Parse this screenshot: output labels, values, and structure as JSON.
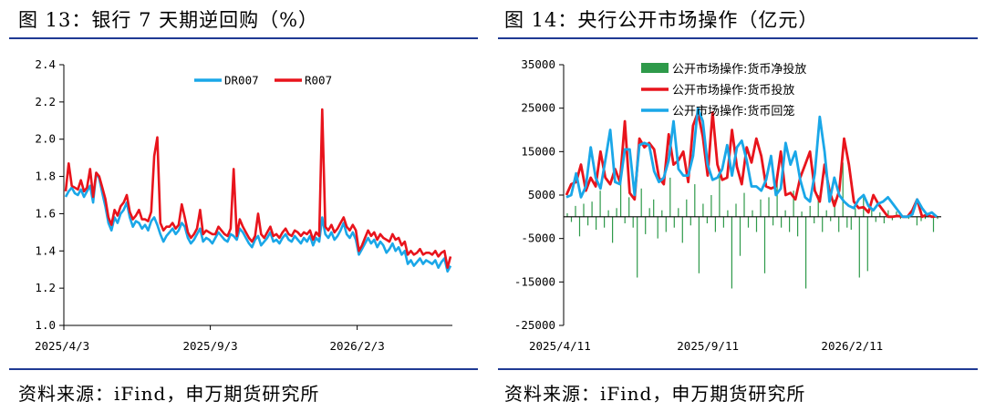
{
  "left": {
    "title": "图 13：银行 7 天期逆回购（%）",
    "source": "资料来源：iFind，申万期货研究所"
  },
  "right": {
    "title": "图 14：央行公开市场操作（亿元）",
    "source": "资料来源：iFind，申万期货研究所"
  },
  "colors": {
    "blue": "#1aa7e8",
    "red": "#e8141c",
    "green": "#2e9a4a",
    "rule": "#1f3a93"
  },
  "chart_data": [
    {
      "type": "line",
      "title": "图 13：银行 7 天期逆回购（%）",
      "xlabel": "",
      "ylabel": "",
      "ylim": [
        1.0,
        2.4
      ],
      "yticks": [
        "1.0",
        "1.2",
        "1.4",
        "1.6",
        "1.8",
        "2.0",
        "2.2",
        "2.4"
      ],
      "xticks": [
        "2025/4/3",
        "2025/9/3",
        "2026/2/3"
      ],
      "legend_position": "top-center",
      "series": [
        {
          "name": "DR007",
          "color": "#1aa7e8",
          "values": [
            1.69,
            1.72,
            1.74,
            1.71,
            1.7,
            1.73,
            1.69,
            1.72,
            1.75,
            1.66,
            1.82,
            1.79,
            1.71,
            1.64,
            1.55,
            1.51,
            1.58,
            1.55,
            1.6,
            1.62,
            1.66,
            1.58,
            1.53,
            1.56,
            1.55,
            1.52,
            1.54,
            1.51,
            1.56,
            1.58,
            1.54,
            1.49,
            1.45,
            1.48,
            1.5,
            1.52,
            1.49,
            1.51,
            1.55,
            1.53,
            1.47,
            1.44,
            1.46,
            1.49,
            1.52,
            1.45,
            1.47,
            1.46,
            1.44,
            1.47,
            1.5,
            1.48,
            1.46,
            1.45,
            1.49,
            1.48,
            1.46,
            1.52,
            1.5,
            1.47,
            1.44,
            1.42,
            1.46,
            1.48,
            1.43,
            1.45,
            1.47,
            1.5,
            1.45,
            1.46,
            1.44,
            1.47,
            1.49,
            1.46,
            1.45,
            1.48,
            1.46,
            1.44,
            1.47,
            1.45,
            1.48,
            1.43,
            1.47,
            1.45,
            1.58,
            1.49,
            1.47,
            1.5,
            1.46,
            1.48,
            1.51,
            1.55,
            1.49,
            1.47,
            1.5,
            1.46,
            1.38,
            1.41,
            1.44,
            1.47,
            1.44,
            1.46,
            1.42,
            1.45,
            1.43,
            1.39,
            1.41,
            1.44,
            1.4,
            1.42,
            1.38,
            1.4,
            1.33,
            1.35,
            1.32,
            1.34,
            1.36,
            1.33,
            1.35,
            1.34,
            1.33,
            1.35,
            1.31,
            1.34,
            1.36,
            1.29,
            1.32
          ]
        },
        {
          "name": "R007",
          "color": "#e8141c",
          "values": [
            1.72,
            1.87,
            1.75,
            1.74,
            1.73,
            1.78,
            1.72,
            1.74,
            1.84,
            1.69,
            1.82,
            1.8,
            1.74,
            1.68,
            1.58,
            1.54,
            1.62,
            1.59,
            1.64,
            1.66,
            1.7,
            1.61,
            1.57,
            1.59,
            1.62,
            1.57,
            1.57,
            1.56,
            1.61,
            1.91,
            2.01,
            1.55,
            1.51,
            1.53,
            1.53,
            1.55,
            1.52,
            1.54,
            1.65,
            1.58,
            1.5,
            1.47,
            1.49,
            1.52,
            1.62,
            1.49,
            1.51,
            1.5,
            1.49,
            1.49,
            1.53,
            1.51,
            1.49,
            1.48,
            1.52,
            1.84,
            1.48,
            1.57,
            1.53,
            1.5,
            1.47,
            1.45,
            1.48,
            1.6,
            1.49,
            1.47,
            1.5,
            1.53,
            1.48,
            1.49,
            1.47,
            1.5,
            1.52,
            1.49,
            1.48,
            1.51,
            1.5,
            1.48,
            1.5,
            1.49,
            1.51,
            1.46,
            1.5,
            1.48,
            2.16,
            1.53,
            1.51,
            1.54,
            1.5,
            1.52,
            1.55,
            1.58,
            1.53,
            1.51,
            1.54,
            1.51,
            1.4,
            1.43,
            1.47,
            1.51,
            1.48,
            1.5,
            1.46,
            1.49,
            1.47,
            1.46,
            1.45,
            1.49,
            1.46,
            1.47,
            1.43,
            1.45,
            1.38,
            1.4,
            1.38,
            1.39,
            1.41,
            1.38,
            1.39,
            1.39,
            1.38,
            1.4,
            1.37,
            1.39,
            1.4,
            1.31,
            1.37
          ]
        }
      ]
    },
    {
      "type": "bar+line",
      "title": "图 14：央行公开市场操作（亿元）",
      "xlabel": "",
      "ylabel": "",
      "ylim": [
        -25000,
        35000
      ],
      "yticks": [
        "-25000",
        "-15000",
        "-5000",
        "5000",
        "15000",
        "25000",
        "35000"
      ],
      "xticks": [
        "2025/4/11",
        "2025/9/11",
        "2026/2/11"
      ],
      "legend_position": "top-left",
      "series": [
        {
          "name": "公开市场操作:货币净投放",
          "type": "bar",
          "color": "#2e9a4a",
          "values": [
            800,
            -1200,
            2500,
            -4500,
            3000,
            -2000,
            3500,
            -3000,
            6000,
            -2500,
            1500,
            -6000,
            2000,
            9000,
            -1500,
            4500,
            -2500,
            -14000,
            6500,
            -4000,
            2000,
            4000,
            -5000,
            1500,
            -3500,
            9000,
            -2500,
            2000,
            -6000,
            4000,
            -2000,
            7500,
            -13000,
            3000,
            -1500,
            5000,
            -3500,
            9500,
            -2500,
            1500,
            -16500,
            3000,
            -9000,
            5500,
            -2500,
            1500,
            -3500,
            4000,
            -13000,
            4500,
            -2000,
            8000,
            -2500,
            1500,
            -3500,
            6000,
            -4500,
            1200,
            -16500,
            2500,
            -1500,
            5000,
            -3500,
            1500,
            -1000,
            4000,
            -3500,
            12500,
            -2500,
            -3000,
            2000,
            -14000,
            5000,
            -12500,
            1500,
            -1200,
            1000,
            -1500,
            1500,
            -800,
            1200,
            -500,
            300,
            -500,
            0,
            -2000,
            -1000,
            -500,
            300,
            -3500,
            -500
          ]
        },
        {
          "name": "公开市场操作:货币投放",
          "type": "line",
          "color": "#e8141c",
          "values": [
            5000,
            7500,
            8000,
            12000,
            6000,
            9000,
            7000,
            15000,
            9000,
            7500,
            11000,
            8000,
            22000,
            5500,
            4000,
            18000,
            16000,
            17000,
            15500,
            9000,
            7500,
            19000,
            12000,
            13000,
            15000,
            8000,
            21000,
            24000,
            18500,
            9500,
            24000,
            12000,
            8500,
            9000,
            20000,
            11500,
            7500,
            16000,
            12500,
            18000,
            14000,
            7000,
            6500,
            7000,
            15000,
            5000,
            5500,
            4000,
            9000,
            12000,
            15000,
            6000,
            3500,
            12000,
            6000,
            2500,
            6000,
            18000,
            12000,
            3500,
            2000,
            2200,
            1000,
            5000,
            3000,
            1500,
            0,
            0,
            200,
            0,
            0,
            1500,
            4000,
            0,
            500,
            0,
            100
          ]
        },
        {
          "name": "公开市场操作:货币回笼",
          "type": "line",
          "color": "#1aa7e8",
          "values": [
            4500,
            5000,
            10000,
            4500,
            7000,
            16000,
            9000,
            6500,
            13000,
            20000,
            8000,
            7500,
            15500,
            15500,
            5000,
            16500,
            17000,
            16500,
            10500,
            8000,
            9000,
            13000,
            22000,
            11000,
            9500,
            9500,
            14000,
            25000,
            22000,
            12000,
            8500,
            9000,
            11000,
            16500,
            9500,
            16000,
            17500,
            13000,
            7000,
            7000,
            6000,
            8500,
            14000,
            5000,
            6500,
            17000,
            12000,
            15000,
            8500,
            4500,
            3500,
            10000,
            23000,
            15000,
            3500,
            9000,
            5000,
            3500,
            2500,
            2000,
            4000,
            5000,
            2500,
            1500,
            3000,
            3500,
            4500,
            3000,
            1500,
            0,
            0,
            500,
            4000,
            2000,
            500,
            1000,
            0
          ]
        }
      ]
    }
  ]
}
